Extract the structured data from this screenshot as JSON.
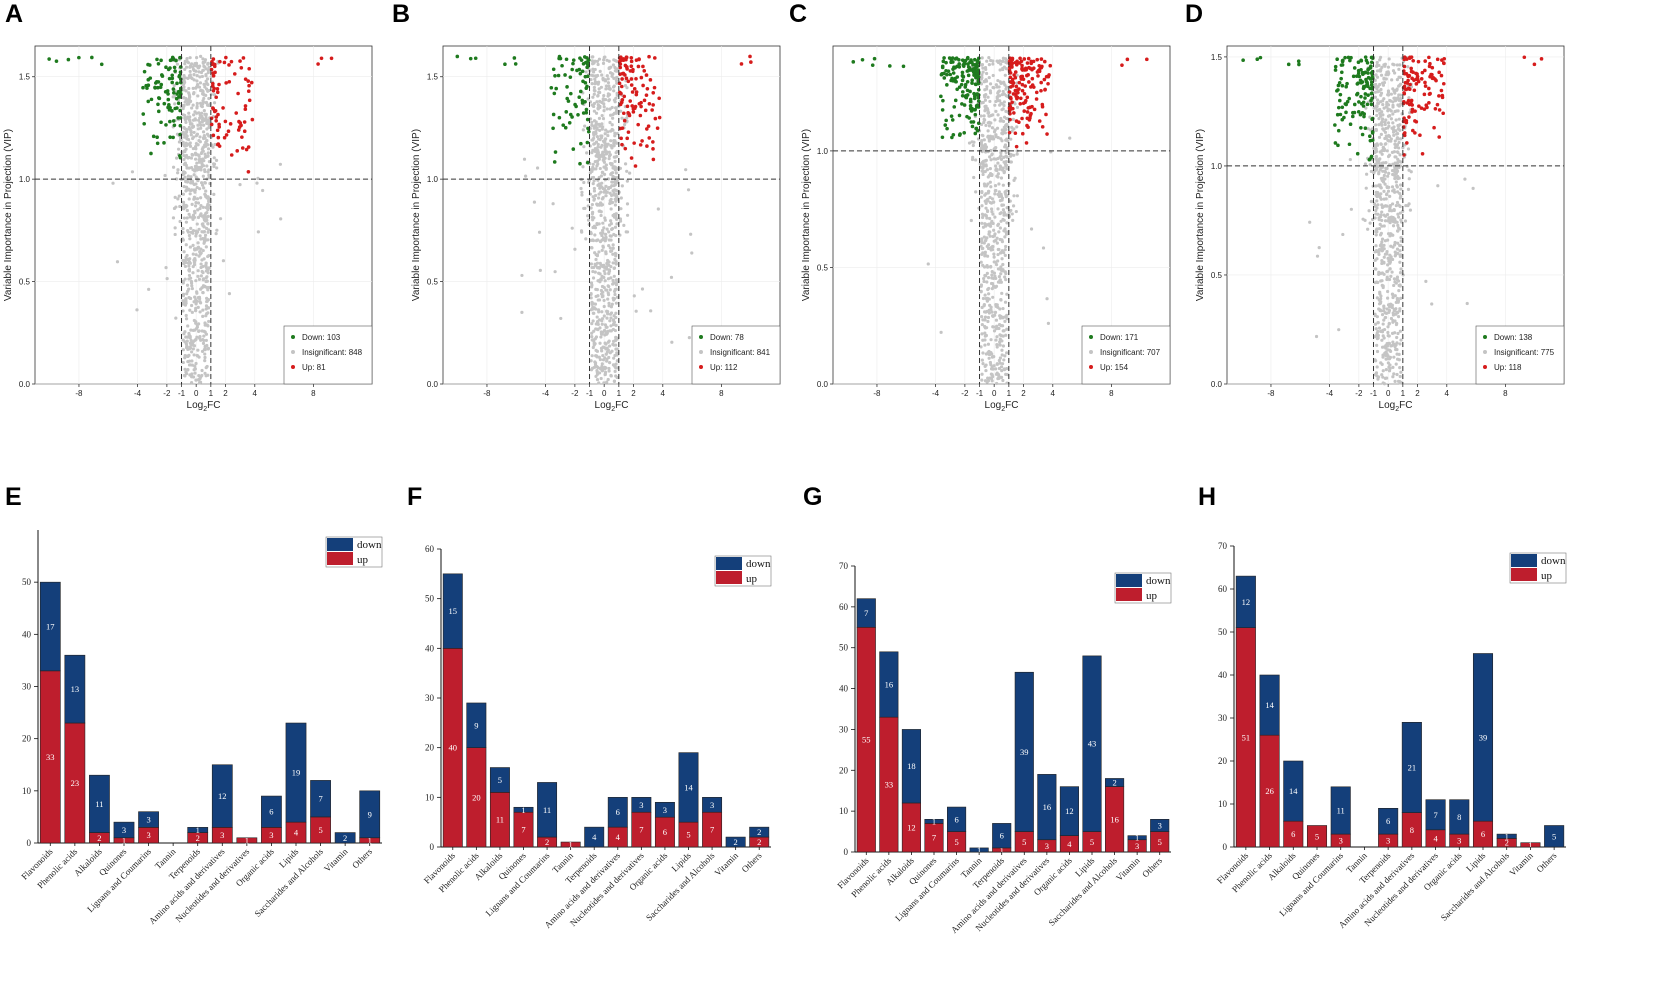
{
  "colors": {
    "down_point": "#1e7a1e",
    "insig_point": "#c4c4c4",
    "up_point": "#d61c1c",
    "bar_down": "#143f7a",
    "bar_up": "#be1e2d"
  },
  "volcano_common": {
    "xlabel": "Log2FC",
    "ylabel": "Variable Importance in Projection (VIP)",
    "x_ticks": [
      "-8",
      "-4",
      "-2",
      "-1",
      "0",
      "1",
      "2",
      "4",
      "8"
    ],
    "legend_labels": {
      "down": "Down",
      "insig": "Insignificant",
      "up": "Up"
    }
  },
  "bar_common": {
    "legend_down": "down",
    "legend_up": "up"
  },
  "chart_data": [
    {
      "panel": "A",
      "type": "scatter",
      "xlabel": "Log2FC",
      "ylabel": "Variable Importance in Projection (VIP)",
      "ylim": [
        0,
        1.65
      ],
      "y_ticks": [
        "0.0",
        "0.5",
        "1.0",
        "1.5"
      ],
      "thresholds": {
        "vip": 1.0,
        "log2fc": [
          -1,
          1
        ]
      },
      "counts": {
        "down": 103,
        "insignificant": 848,
        "up": 81
      },
      "legend_text": {
        "down": "Down: 103",
        "insig": "Insignificant: 848",
        "up": "Up: 81"
      }
    },
    {
      "panel": "B",
      "type": "scatter",
      "xlabel": "Log2FC",
      "ylabel": "Variable Importance in Projection (VIP)",
      "ylim": [
        0,
        1.65
      ],
      "y_ticks": [
        "0.0",
        "0.5",
        "1.0",
        "1.5"
      ],
      "thresholds": {
        "vip": 1.0,
        "log2fc": [
          -1,
          1
        ]
      },
      "counts": {
        "down": 78,
        "insignificant": 841,
        "up": 112
      },
      "legend_text": {
        "down": "Down: 78",
        "insig": "Insignificant: 841",
        "up": "Up: 112"
      }
    },
    {
      "panel": "C",
      "type": "scatter",
      "xlabel": "Log2FC",
      "ylabel": "Variable Importance in Projection (VIP)",
      "ylim": [
        0,
        1.45
      ],
      "y_ticks": [
        "0.0",
        "0.5",
        "1.0"
      ],
      "thresholds": {
        "vip": 1.0,
        "log2fc": [
          -1,
          1
        ]
      },
      "counts": {
        "down": 171,
        "insignificant": 707,
        "up": 154
      },
      "legend_text": {
        "down": "Down: 171",
        "insig": "Insignificant: 707",
        "up": "Up: 154"
      }
    },
    {
      "panel": "D",
      "type": "scatter",
      "xlabel": "Log2FC",
      "ylabel": "Variable Importance in Projection (VIP)",
      "ylim": [
        0,
        1.55
      ],
      "y_ticks": [
        "0.0",
        "0.5",
        "1.0",
        "1.5"
      ],
      "thresholds": {
        "vip": 1.0,
        "log2fc": [
          -1,
          1
        ]
      },
      "counts": {
        "down": 138,
        "insignificant": 775,
        "up": 118
      },
      "legend_text": {
        "down": "Down: 138",
        "insig": "Insignificant: 775",
        "up": "Up: 118"
      }
    },
    {
      "panel": "E",
      "type": "bar",
      "stacked": true,
      "ylim": [
        0,
        60
      ],
      "y_ticks": [
        0,
        10,
        20,
        30,
        40,
        50
      ],
      "categories": [
        "Flavonoids",
        "Phenolic acids",
        "Alkaloids",
        "Quinones",
        "Lignans and Coumarins",
        "Tannin",
        "Terpenoids",
        "Amino acids and derivatives",
        "Nucleotides and derivatives",
        "Organic acids",
        "Lipids",
        "Saccharides and Alcohols",
        "Vitamin",
        "Others"
      ],
      "series": [
        {
          "name": "up",
          "values": [
            33,
            23,
            2,
            1,
            3,
            0,
            2,
            3,
            1,
            3,
            4,
            5,
            0,
            1
          ]
        },
        {
          "name": "down",
          "values": [
            17,
            13,
            11,
            3,
            3,
            0,
            1,
            12,
            0,
            6,
            19,
            7,
            2,
            9
          ]
        }
      ]
    },
    {
      "panel": "F",
      "type": "bar",
      "stacked": true,
      "ylim": [
        0,
        60
      ],
      "y_ticks": [
        0,
        10,
        20,
        30,
        40,
        50,
        60
      ],
      "categories": [
        "Flavonoids",
        "Phenolic acids",
        "Alkaloids",
        "Quinones",
        "Lignans and Coumarins",
        "Tannin",
        "Terpenoids",
        "Amino acids and derivatives",
        "Nucleotides and derivatives",
        "Organic acids",
        "Lipids",
        "Saccharides and Alcohols",
        "Vitamin",
        "Others"
      ],
      "series": [
        {
          "name": "up",
          "values": [
            40,
            20,
            11,
            7,
            2,
            1,
            0,
            4,
            7,
            6,
            5,
            7,
            0,
            2
          ]
        },
        {
          "name": "down",
          "values": [
            15,
            9,
            5,
            1,
            11,
            0,
            4,
            6,
            3,
            3,
            14,
            3,
            2,
            2
          ]
        }
      ]
    },
    {
      "panel": "G",
      "type": "bar",
      "stacked": true,
      "ylim": [
        0,
        70
      ],
      "y_ticks": [
        0,
        10,
        20,
        30,
        40,
        50,
        60,
        70
      ],
      "categories": [
        "Flavonoids",
        "Phenolic acids",
        "Alkaloids",
        "Quinones",
        "Lignans and Coumarins",
        "Tannin",
        "Terpenoids",
        "Amino acids and derivatives",
        "Nucleotides and derivatives",
        "Organic acids",
        "Lipids",
        "Saccharides and Alcohols",
        "Vitamin",
        "Others"
      ],
      "series": [
        {
          "name": "up",
          "values": [
            55,
            33,
            12,
            7,
            5,
            0,
            1,
            5,
            3,
            4,
            5,
            16,
            3,
            5
          ]
        },
        {
          "name": "down",
          "values": [
            7,
            16,
            18,
            1,
            6,
            1,
            6,
            39,
            16,
            12,
            43,
            2,
            1,
            3
          ]
        }
      ]
    },
    {
      "panel": "H",
      "type": "bar",
      "stacked": true,
      "ylim": [
        0,
        70
      ],
      "y_ticks": [
        0,
        10,
        20,
        30,
        40,
        50,
        60,
        70
      ],
      "categories": [
        "Flavonoids",
        "Phenolic acids",
        "Alkaloids",
        "Quinones",
        "Lignans and Coumarins",
        "Tannin",
        "Terpenoids",
        "Amino acids and derivatives",
        "Nucleotides and derivatives",
        "Organic acids",
        "Lipids",
        "Saccharides and Alcohols",
        "Vitamin",
        "Others"
      ],
      "series": [
        {
          "name": "up",
          "values": [
            51,
            26,
            6,
            5,
            3,
            0,
            3,
            8,
            4,
            3,
            6,
            2,
            1,
            0
          ]
        },
        {
          "name": "down",
          "values": [
            12,
            14,
            14,
            0,
            11,
            0,
            6,
            21,
            7,
            8,
            39,
            1,
            0,
            5
          ]
        }
      ]
    }
  ]
}
